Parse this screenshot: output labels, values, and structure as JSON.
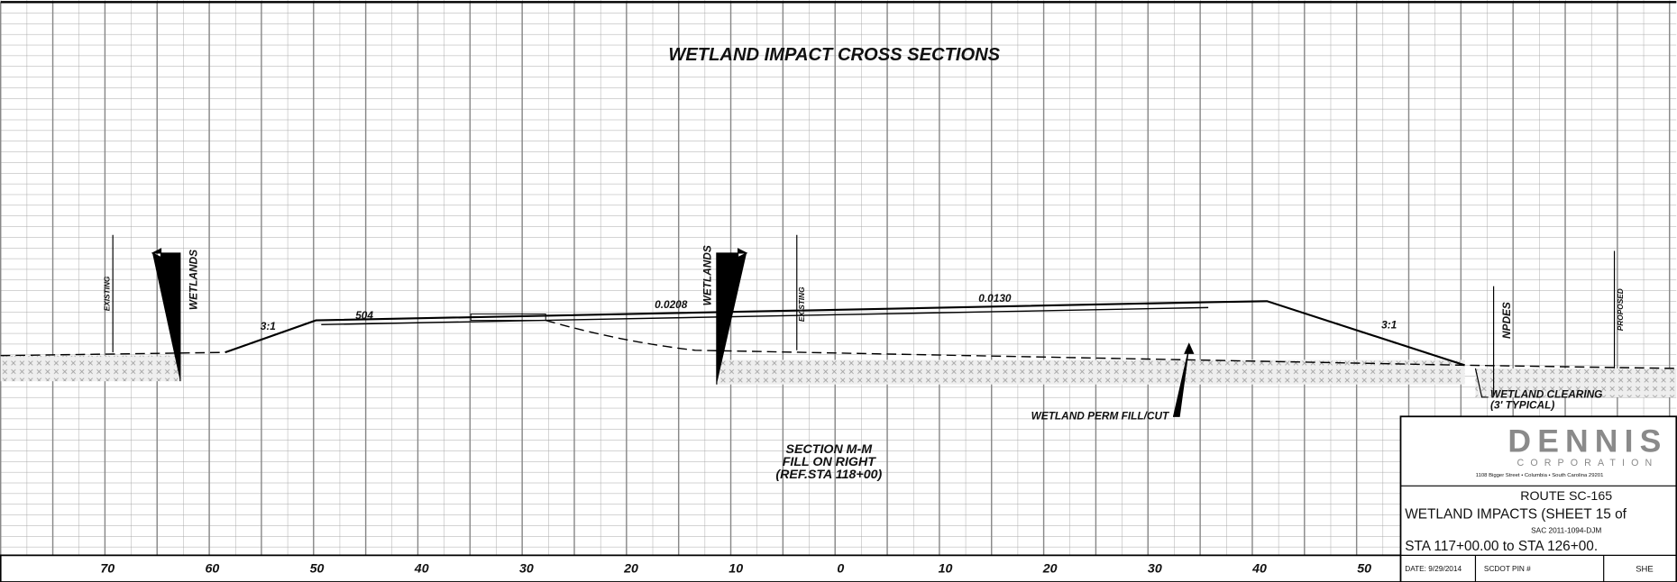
{
  "title": "WETLAND IMPACT CROSS SECTIONS",
  "labels": {
    "wetlands_left": "WETLANDS",
    "existing_left": "EXISTING",
    "slope_left": "3:1",
    "grade_left": "504",
    "grade_mid": "0.0208",
    "wetlands_mid": "WETLANDS",
    "existing_mid": "EXISTING",
    "grade_right": "0.0130",
    "slope_right": "3:1",
    "npdes": "NPDES",
    "proposed": "PROPOSED",
    "clearing": "WETLAND CLEARING",
    "clearing_note": "(3' TYPICAL)",
    "perm_fill": "WETLAND PERM FILL/CUT"
  },
  "section": [
    "SECTION M-M",
    "FILL ON RIGHT",
    "(REF.STA 118+00)"
  ],
  "offsets": [
    "70",
    "60",
    "50",
    "40",
    "30",
    "20",
    "10",
    "0",
    "10",
    "20",
    "30",
    "40",
    "50"
  ],
  "title_block": {
    "company": "DENNIS",
    "company_sub": "CORPORATION",
    "address": "1108 Bigger Street • Columbia • South Carolina 29201",
    "route": "ROUTE SC-165",
    "sheet": "WETLAND IMPACTS (SHEET 15 of",
    "project": "SAC 2011-1094-DJM",
    "stations": "STA 117+00.00 to STA 126+00.",
    "date": "DATE: 9/29/2014",
    "pin": "SCDOT PIN #",
    "sheet_no": "SHE"
  }
}
